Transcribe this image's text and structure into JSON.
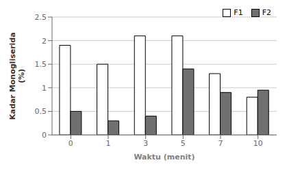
{
  "chart_data": {
    "type": "bar",
    "xlabel": "Waktu (menit)",
    "ylabel": "Kadar Monogliserida\n(%)",
    "categories": [
      "0",
      "1",
      "3",
      "5",
      "7",
      "10"
    ],
    "series": [
      {
        "name": "F1",
        "color": "#ffffff",
        "values": [
          1.9,
          1.5,
          2.1,
          2.1,
          1.3,
          0.8
        ]
      },
      {
        "name": "F2",
        "color": "#707070",
        "values": [
          0.5,
          0.3,
          0.4,
          1.4,
          0.9,
          0.95
        ]
      }
    ],
    "ylim": [
      0,
      2.5
    ],
    "yticks": [
      0,
      0.5,
      1,
      1.5,
      2,
      2.5
    ],
    "grid": true,
    "legend": "upper right"
  }
}
